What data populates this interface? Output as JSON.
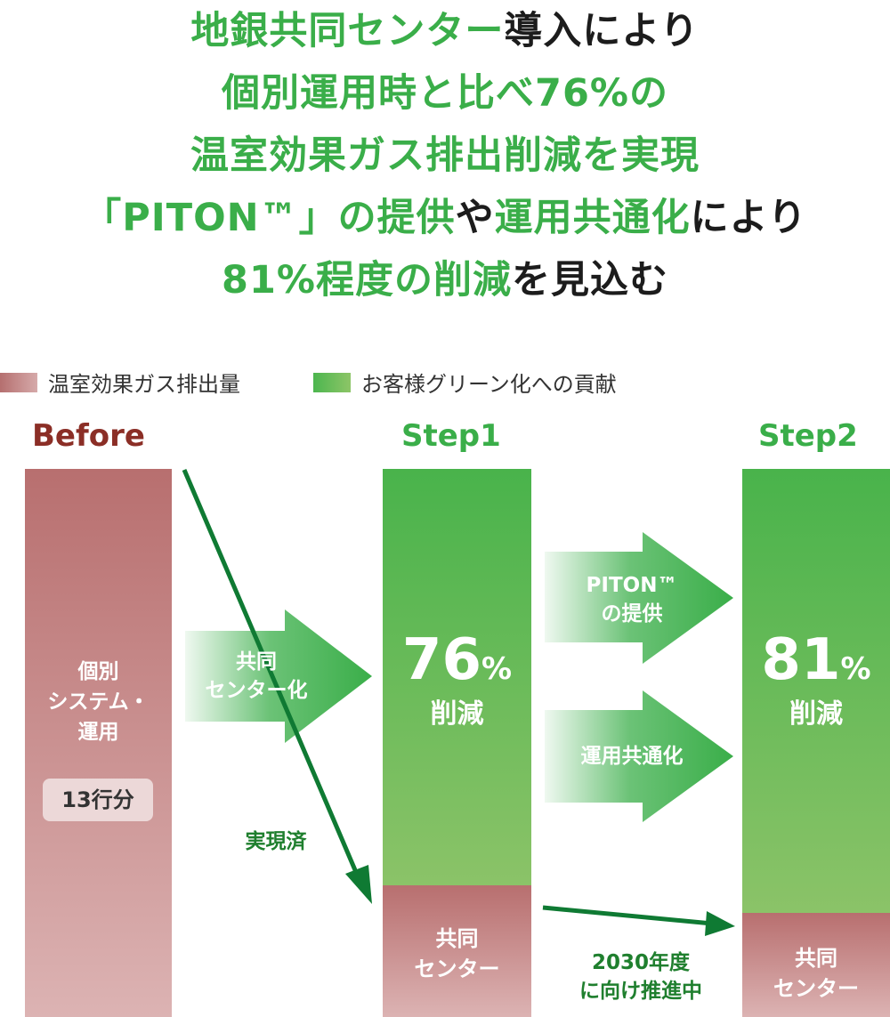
{
  "headline": {
    "line1": [
      {
        "t": "地銀共同センター",
        "c": "g"
      },
      {
        "t": "導入により",
        "c": "k"
      }
    ],
    "line2": [
      {
        "t": "個別運用時と比べ76%の",
        "c": "g"
      }
    ],
    "line3": [
      {
        "t": "温室効果ガス排出削減を実現",
        "c": "g"
      }
    ],
    "line4": [
      {
        "t": "「PITON™」の提供",
        "c": "g"
      },
      {
        "t": "や",
        "c": "k"
      },
      {
        "t": "運用共通化",
        "c": "g"
      },
      {
        "t": "により",
        "c": "k"
      }
    ],
    "line5": [
      {
        "t": "81%程度の削減",
        "c": "g"
      },
      {
        "t": "を見込む",
        "c": "k"
      }
    ]
  },
  "legend": {
    "emissions": "温室効果ガス排出量",
    "contribution": "お客様グリーン化への貢献"
  },
  "colors": {
    "green_text": "#3aae49",
    "dark_text": "#1c1c1c",
    "before_label": "#8b2e26",
    "arrow_dark_green": "#0f7a33"
  },
  "stages": {
    "before": {
      "label": "Before",
      "bar_text_line1": "個別",
      "bar_text_line2": "システム・",
      "bar_text_line3": "運用",
      "badge": "13行分"
    },
    "step1": {
      "label": "Step1",
      "pct": "76",
      "pct_unit": "%",
      "pct_label": "削減",
      "bottom_line1": "共同",
      "bottom_line2": "センター"
    },
    "step2": {
      "label": "Step2",
      "pct": "81",
      "pct_unit": "%",
      "pct_label": "削減",
      "bottom_line1": "共同",
      "bottom_line2": "センター"
    }
  },
  "arrows": {
    "to_step1_line1": "共同",
    "to_step1_line2": "センター化",
    "realized": "実現済",
    "piton_line1": "PITON™",
    "piton_line2": "の提供",
    "ops_common": "運用共通化",
    "target_line1": "2030年度",
    "target_line2": "に向け推進中"
  },
  "chart_data": {
    "type": "bar",
    "categories": [
      "Before",
      "Step1",
      "Step2"
    ],
    "series": [
      {
        "name": "温室効果ガス排出量",
        "values": [
          100,
          24,
          19
        ]
      },
      {
        "name": "お客様グリーン化への貢献",
        "values": [
          0,
          76,
          81
        ]
      }
    ],
    "stacked": true,
    "ylim": [
      0,
      100
    ],
    "legend_position": "top-left",
    "grid": false
  }
}
